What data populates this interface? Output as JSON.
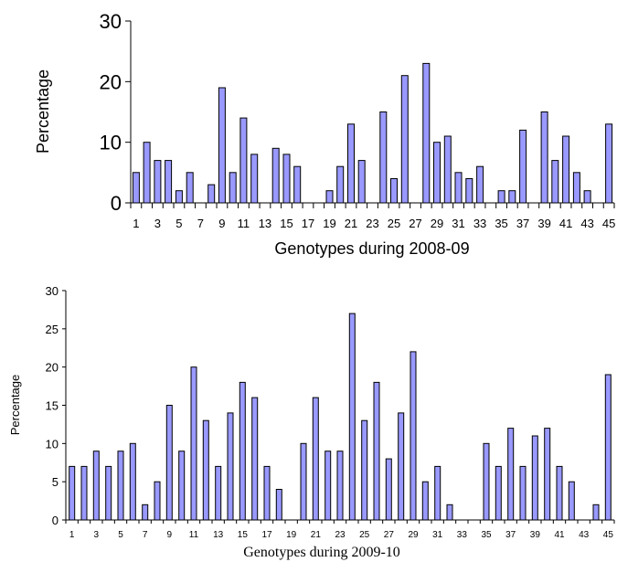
{
  "chart_data": [
    {
      "type": "bar",
      "xlabel": "Genotypes during 2008-09",
      "ylabel": "Percentage",
      "ylim": [
        0,
        30
      ],
      "yticks": [
        0,
        10,
        20,
        30
      ],
      "categories": [
        1,
        2,
        3,
        4,
        5,
        6,
        7,
        8,
        9,
        10,
        11,
        12,
        13,
        14,
        15,
        16,
        17,
        18,
        19,
        20,
        21,
        22,
        23,
        24,
        25,
        26,
        27,
        28,
        29,
        30,
        31,
        32,
        33,
        34,
        35,
        36,
        37,
        38,
        39,
        40,
        41,
        42,
        43,
        44,
        45
      ],
      "x_tick_labels": [
        "1",
        "3",
        "5",
        "7",
        "9",
        "11",
        "13",
        "15",
        "17",
        "19",
        "21",
        "23",
        "25",
        "27",
        "29",
        "31",
        "33",
        "35",
        "37",
        "39",
        "41",
        "43",
        "45"
      ],
      "values": [
        5,
        10,
        7,
        7,
        2,
        5,
        0,
        3,
        19,
        5,
        14,
        8,
        0,
        9,
        8,
        6,
        0,
        0,
        2,
        6,
        13,
        7,
        0,
        15,
        4,
        21,
        0,
        23,
        10,
        11,
        5,
        4,
        6,
        0,
        2,
        2,
        12,
        0,
        15,
        7,
        11,
        5,
        2,
        0,
        13
      ],
      "grid": false,
      "bar_color": "#9999ff"
    },
    {
      "type": "bar",
      "xlabel": "Genotypes during 2009-10",
      "ylabel": "Percentage",
      "ylim": [
        0,
        30
      ],
      "yticks": [
        0,
        5,
        10,
        15,
        20,
        25,
        30
      ],
      "categories": [
        1,
        2,
        3,
        4,
        5,
        6,
        7,
        8,
        9,
        10,
        11,
        12,
        13,
        14,
        15,
        16,
        17,
        18,
        19,
        20,
        21,
        22,
        23,
        24,
        25,
        26,
        27,
        28,
        29,
        30,
        31,
        32,
        33,
        34,
        35,
        36,
        37,
        38,
        39,
        40,
        41,
        42,
        43,
        44,
        45
      ],
      "x_tick_labels": [
        "1",
        "3",
        "5",
        "7",
        "9",
        "11",
        "13",
        "15",
        "17",
        "19",
        "21",
        "23",
        "25",
        "27",
        "29",
        "31",
        "33",
        "35",
        "37",
        "39",
        "41",
        "43",
        "45"
      ],
      "values": [
        7,
        7,
        9,
        7,
        9,
        10,
        2,
        5,
        15,
        9,
        20,
        13,
        7,
        14,
        18,
        16,
        7,
        4,
        0,
        10,
        16,
        9,
        9,
        27,
        13,
        18,
        8,
        14,
        22,
        5,
        7,
        2,
        0,
        0,
        10,
        7,
        12,
        7,
        11,
        12,
        7,
        5,
        0,
        2,
        19
      ],
      "grid": false,
      "bar_color": "#9999ff"
    }
  ]
}
